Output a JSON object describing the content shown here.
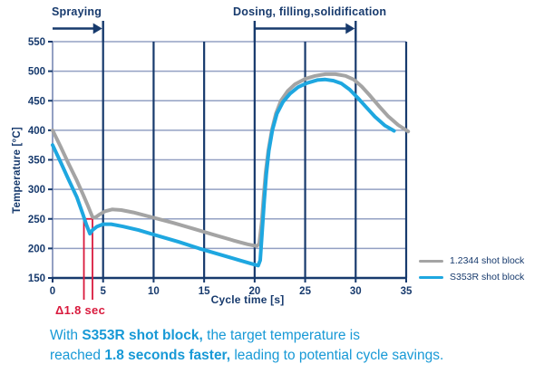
{
  "figure": {
    "spraying_label": "Spraying",
    "dosing_label": "Dosing, filling,solidification",
    "delta_label": "Δ1.8 sec",
    "caption": [
      [
        {
          "text": "With ",
          "bold": false
        },
        {
          "text": "S353R shot block,",
          "bold": true
        },
        {
          "text": " the target temperature is",
          "bold": false
        }
      ],
      [
        {
          "text": "reached ",
          "bold": false
        },
        {
          "text": "1.8 seconds faster,",
          "bold": true
        },
        {
          "text": " leading to potential cycle savings.",
          "bold": false
        }
      ]
    ]
  },
  "legend": [
    {
      "label": "1.2344 shot block",
      "color": "#a4a4a4"
    },
    {
      "label": "S353R shot block",
      "color": "#1ea7e0"
    }
  ],
  "colors": {
    "navy": "#173a6d",
    "grid_light": "#93a0c3",
    "gray_series": "#a4a4a4",
    "blue_series": "#1ea7e0",
    "caption_blue": "#1799d6",
    "red": "#d91a3d",
    "background": "#ffffff"
  },
  "chart_data": {
    "type": "line",
    "title": "",
    "xlabel": "Cycle time [s]",
    "ylabel": "Temperature [°C]",
    "xlim": [
      0,
      35
    ],
    "ylim": [
      150,
      550
    ],
    "xticks": [
      0,
      5,
      10,
      15,
      20,
      25,
      30,
      35
    ],
    "yticks": [
      150,
      200,
      250,
      300,
      350,
      400,
      450,
      500,
      550
    ],
    "grid": true,
    "legend_position": "right",
    "series": [
      {
        "name": "1.2344 shot block",
        "color": "#a4a4a4",
        "points": [
          [
            0,
            400
          ],
          [
            0.8,
            372
          ],
          [
            1.6,
            343
          ],
          [
            2.4,
            315
          ],
          [
            3.0,
            292
          ],
          [
            3.5,
            272
          ],
          [
            3.95,
            253
          ],
          [
            4.2,
            252
          ],
          [
            4.6,
            257
          ],
          [
            5.2,
            263
          ],
          [
            5.9,
            266
          ],
          [
            6.8,
            265
          ],
          [
            8,
            261
          ],
          [
            10,
            252
          ],
          [
            12,
            243
          ],
          [
            14,
            233
          ],
          [
            16,
            223
          ],
          [
            18,
            213
          ],
          [
            19.3,
            207
          ],
          [
            20.2,
            204
          ],
          [
            20.45,
            208
          ],
          [
            20.7,
            245
          ],
          [
            20.9,
            290
          ],
          [
            21.1,
            330
          ],
          [
            21.35,
            365
          ],
          [
            21.7,
            400
          ],
          [
            22.1,
            428
          ],
          [
            22.6,
            450
          ],
          [
            23.3,
            467
          ],
          [
            24,
            478
          ],
          [
            25,
            487
          ],
          [
            26,
            492
          ],
          [
            27,
            495
          ],
          [
            28,
            495
          ],
          [
            29,
            492
          ],
          [
            29.8,
            486
          ],
          [
            30.6,
            474
          ],
          [
            31.4,
            459
          ],
          [
            32.3,
            441
          ],
          [
            33.2,
            424
          ],
          [
            34.2,
            409
          ],
          [
            35.2,
            398
          ]
        ]
      },
      {
        "name": "S353R shot block",
        "color": "#1ea7e0",
        "points": [
          [
            0,
            375
          ],
          [
            0.8,
            346
          ],
          [
            1.6,
            316
          ],
          [
            2.4,
            287
          ],
          [
            3.0,
            258
          ],
          [
            3.35,
            240
          ],
          [
            3.7,
            225
          ],
          [
            3.95,
            231
          ],
          [
            4.4,
            237
          ],
          [
            5,
            241
          ],
          [
            5.8,
            241
          ],
          [
            7,
            237
          ],
          [
            8.5,
            231
          ],
          [
            10.5,
            221
          ],
          [
            12.5,
            211
          ],
          [
            14.5,
            200
          ],
          [
            16.5,
            190
          ],
          [
            18.5,
            180
          ],
          [
            19.7,
            174
          ],
          [
            20.35,
            171
          ],
          [
            20.55,
            180
          ],
          [
            20.75,
            230
          ],
          [
            20.95,
            280
          ],
          [
            21.15,
            325
          ],
          [
            21.4,
            365
          ],
          [
            21.75,
            400
          ],
          [
            22.2,
            428
          ],
          [
            22.8,
            448
          ],
          [
            23.5,
            462
          ],
          [
            24.3,
            473
          ],
          [
            25.2,
            480
          ],
          [
            26.2,
            485
          ],
          [
            27,
            486
          ],
          [
            27.8,
            484
          ],
          [
            28.6,
            479
          ],
          [
            29.4,
            469
          ],
          [
            30.2,
            455
          ],
          [
            31,
            440
          ],
          [
            31.9,
            423
          ],
          [
            32.9,
            408
          ],
          [
            33.8,
            399
          ]
        ]
      }
    ],
    "annotations": {
      "spraying": {
        "label": "Spraying",
        "x_span": [
          0,
          5
        ]
      },
      "dosing": {
        "label": "Dosing, filling,solidification",
        "x_span": [
          20,
          30
        ]
      },
      "delta": {
        "label": "Δ1.8 sec",
        "x_lines": [
          3.1,
          3.95
        ],
        "connector_temp": 250
      }
    }
  }
}
